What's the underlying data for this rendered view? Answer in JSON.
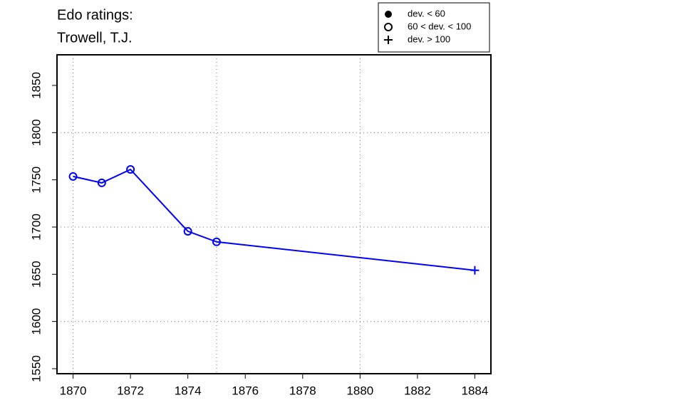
{
  "chart_data": {
    "type": "line",
    "title": [
      "Edo ratings:",
      "Trowell, T.J."
    ],
    "x": [
      1870,
      1871,
      1872,
      1874,
      1875,
      1884
    ],
    "series": [
      {
        "color": "#0000ff",
        "values": [
          1753.6,
          1746.8,
          1761,
          1695.5,
          1684.3,
          1654.2
        ],
        "markers": [
          "circle",
          "circle",
          "circle",
          "circle",
          "circle",
          "plus"
        ]
      }
    ],
    "xlim": [
      1869.44,
      1884.56
    ],
    "ylim": [
      1544.7,
      1882.4
    ],
    "xticks": [
      1870,
      1872,
      1874,
      1876,
      1878,
      1880,
      1882,
      1884
    ],
    "yticks": [
      1550,
      1600,
      1650,
      1700,
      1750,
      1800,
      1850
    ],
    "xgrid": [
      1870,
      1875,
      1880
    ],
    "ygrid": [
      1600,
      1700,
      1800
    ],
    "legend": {
      "position": "top-right",
      "items": [
        {
          "marker": "dot",
          "label": "dev. < 60"
        },
        {
          "marker": "circle",
          "label": "60 < dev. < 100"
        },
        {
          "marker": "plus",
          "label": "dev. > 100"
        }
      ]
    }
  }
}
